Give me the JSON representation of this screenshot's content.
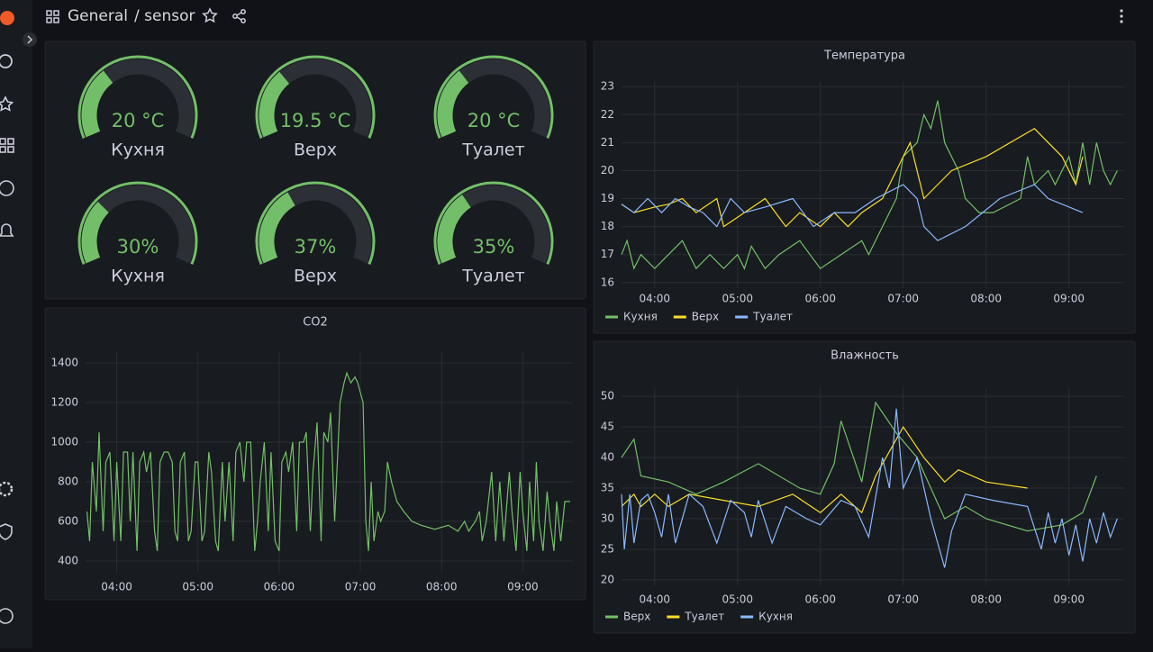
{
  "header": {
    "folder": "General",
    "dashboard": "/ sensor"
  },
  "gauges": [
    {
      "value": 20,
      "value_label": "20 °C",
      "label": "Кухня",
      "min": 0,
      "max": 60
    },
    {
      "value": 19.5,
      "value_label": "19.5 °C",
      "label": "Верх",
      "min": 0,
      "max": 60
    },
    {
      "value": 20,
      "value_label": "20 °C",
      "label": "Туалет",
      "min": 0,
      "max": 60
    },
    {
      "value": 30,
      "value_label": "30%",
      "label": "Кухня",
      "min": 0,
      "max": 100
    },
    {
      "value": 37,
      "value_label": "37%",
      "label": "Верх",
      "min": 0,
      "max": 100
    },
    {
      "value": 35,
      "value_label": "35%",
      "label": "Туалет",
      "min": 0,
      "max": 100
    }
  ],
  "chart_data": [
    {
      "type": "line",
      "title": "CO2",
      "xlim": [
        "03:37",
        "09:37"
      ],
      "xticks": [
        "04:00",
        "05:00",
        "06:00",
        "07:00",
        "08:00",
        "09:00"
      ],
      "ylim": [
        340,
        1460
      ],
      "yticks": [
        400,
        600,
        800,
        1000,
        1200,
        1400
      ],
      "grid": true,
      "series": [
        {
          "color": "#73bf69",
          "x": [
            "03:38",
            "03:40",
            "03:42",
            "03:45",
            "03:47",
            "03:50",
            "03:52",
            "03:55",
            "03:58",
            "04:00",
            "04:03",
            "04:05",
            "04:08",
            "04:10",
            "04:12",
            "04:15",
            "04:17",
            "04:20",
            "04:22",
            "04:25",
            "04:28",
            "04:30",
            "04:32",
            "04:35",
            "04:38",
            "04:41",
            "04:43",
            "04:45",
            "04:47",
            "04:50",
            "04:53",
            "04:55",
            "04:58",
            "05:00",
            "05:03",
            "05:05",
            "05:08",
            "05:10",
            "05:13",
            "05:15",
            "05:18",
            "05:20",
            "05:23",
            "05:26",
            "05:28",
            "05:31",
            "05:34",
            "05:36",
            "05:39",
            "05:42",
            "05:44",
            "05:46",
            "05:49",
            "05:52",
            "05:54",
            "05:57",
            "06:00",
            "06:02",
            "06:05",
            "06:07",
            "06:10",
            "06:13",
            "06:15",
            "06:18",
            "06:20",
            "06:23",
            "06:25",
            "06:28",
            "06:31",
            "06:33",
            "06:36",
            "06:38",
            "06:41",
            "06:43",
            "06:45",
            "06:48",
            "06:50",
            "06:53",
            "06:56",
            "06:58",
            "07:00",
            "07:02",
            "07:04",
            "07:06",
            "07:08",
            "07:10",
            "07:13",
            "07:15",
            "07:18",
            "07:20",
            "07:23",
            "07:27",
            "07:32",
            "07:38",
            "07:45",
            "07:55",
            "08:05",
            "08:12",
            "08:17",
            "08:20",
            "08:25",
            "08:28",
            "08:30",
            "08:33",
            "08:37",
            "08:40",
            "08:43",
            "08:46",
            "08:50",
            "08:52",
            "08:55",
            "08:58",
            "09:00",
            "09:03",
            "09:05",
            "09:08",
            "09:10",
            "09:12",
            "09:15",
            "09:18",
            "09:20",
            "09:23",
            "09:25",
            "09:28",
            "09:31",
            "09:35"
          ],
          "values": [
            650,
            500,
            900,
            650,
            1050,
            550,
            900,
            950,
            500,
            900,
            500,
            950,
            950,
            600,
            950,
            450,
            900,
            950,
            850,
            950,
            550,
            450,
            900,
            950,
            950,
            900,
            550,
            500,
            900,
            950,
            500,
            550,
            900,
            900,
            500,
            550,
            950,
            850,
            500,
            450,
            900,
            600,
            900,
            500,
            950,
            1000,
            800,
            1000,
            1000,
            450,
            600,
            800,
            1000,
            550,
            950,
            500,
            450,
            900,
            950,
            850,
            1000,
            550,
            1000,
            1000,
            1050,
            550,
            850,
            1100,
            500,
            1050,
            1000,
            1150,
            600,
            900,
            1200,
            1300,
            1350,
            1300,
            1330,
            1300,
            1250,
            1200,
            600,
            450,
            800,
            500,
            650,
            600,
            650,
            900,
            800,
            700,
            650,
            600,
            580,
            560,
            580,
            550,
            600,
            550,
            600,
            650,
            500,
            600,
            850,
            500,
            800,
            500,
            850,
            650,
            450,
            850,
            650,
            450,
            800,
            500,
            900,
            600,
            450,
            750,
            600,
            450,
            700,
            500,
            700,
            700
          ]
        }
      ]
    },
    {
      "type": "line",
      "title": "Температура",
      "xlim": [
        "03:36",
        "09:40"
      ],
      "xticks": [
        "04:00",
        "05:00",
        "06:00",
        "07:00",
        "08:00",
        "09:00"
      ],
      "ylim": [
        15.8,
        23.2
      ],
      "yticks": [
        16,
        17,
        18,
        19,
        20,
        21,
        22,
        23
      ],
      "grid": true,
      "legend": "bottom",
      "series": [
        {
          "name": "Кухня",
          "color": "#73bf69",
          "x": [
            "03:36",
            "03:40",
            "03:45",
            "03:50",
            "04:00",
            "04:10",
            "04:20",
            "04:30",
            "04:40",
            "04:50",
            "05:00",
            "05:05",
            "05:10",
            "05:20",
            "05:30",
            "05:45",
            "06:00",
            "06:15",
            "06:30",
            "06:35",
            "06:45",
            "06:55",
            "07:00",
            "07:10",
            "07:15",
            "07:20",
            "07:25",
            "07:30",
            "07:40",
            "07:45",
            "07:55",
            "08:05",
            "08:25",
            "08:30",
            "08:35",
            "08:45",
            "08:50",
            "09:00",
            "09:05",
            "09:10",
            "09:15",
            "09:20",
            "09:25",
            "09:30",
            "09:35"
          ],
          "values": [
            17,
            17.5,
            16.5,
            17,
            16.5,
            17,
            17.5,
            16.5,
            17,
            16.5,
            17,
            16.5,
            17.3,
            16.5,
            17,
            17.5,
            16.5,
            17,
            17.5,
            17,
            18,
            19,
            20.5,
            21,
            22,
            21.5,
            22.5,
            21,
            20,
            19,
            18.5,
            18.5,
            19,
            20.5,
            19.5,
            20,
            19.5,
            20.5,
            19.5,
            21,
            19.5,
            21,
            20,
            19.5,
            20
          ]
        },
        {
          "name": "Верх",
          "color": "#fade2a",
          "x": [
            "03:36",
            "03:45",
            "04:00",
            "04:10",
            "04:20",
            "04:30",
            "04:45",
            "04:50",
            "05:05",
            "05:20",
            "05:35",
            "05:45",
            "06:00",
            "06:10",
            "06:20",
            "06:30",
            "06:45",
            "06:55",
            "07:00",
            "07:05",
            "07:15",
            "07:25",
            "07:35",
            "08:00",
            "08:35",
            "08:55",
            "09:05",
            "09:10"
          ],
          "values": [
            18.8,
            18.5,
            18.7,
            18.8,
            19,
            18.5,
            19,
            18,
            18.5,
            19,
            18,
            18.5,
            18,
            18.5,
            18,
            18.5,
            19,
            20,
            20.5,
            21,
            19,
            19.5,
            20,
            20.5,
            21.5,
            20.5,
            19.5,
            20.5
          ]
        },
        {
          "name": "Туалет",
          "color": "#8ab8ff",
          "x": [
            "03:36",
            "03:45",
            "03:55",
            "04:05",
            "04:15",
            "04:25",
            "04:35",
            "04:45",
            "04:55",
            "05:05",
            "05:20",
            "05:40",
            "05:55",
            "06:10",
            "06:25",
            "06:40",
            "07:00",
            "07:10",
            "07:15",
            "07:25",
            "07:45",
            "08:10",
            "08:35",
            "08:45",
            "09:10"
          ],
          "values": [
            18.8,
            18.5,
            19,
            18.5,
            19,
            18.7,
            18.5,
            18,
            19,
            18.5,
            18.7,
            19,
            18,
            18.5,
            18.5,
            19,
            19.5,
            19,
            18,
            17.5,
            18,
            19,
            19.5,
            19,
            18.5
          ]
        }
      ]
    },
    {
      "type": "line",
      "title": "Влажность",
      "xlim": [
        "03:36",
        "09:40"
      ],
      "xticks": [
        "04:00",
        "05:00",
        "06:00",
        "07:00",
        "08:00",
        "09:00"
      ],
      "ylim": [
        19.1,
        51.5
      ],
      "yticks": [
        20,
        25,
        30,
        35,
        40,
        45,
        50
      ],
      "grid": true,
      "legend": "bottom",
      "series": [
        {
          "name": "Верх",
          "color": "#73bf69",
          "x": [
            "03:36",
            "03:45",
            "03:50",
            "04:10",
            "04:30",
            "04:50",
            "05:15",
            "05:45",
            "06:00",
            "06:10",
            "06:15",
            "06:30",
            "06:40",
            "06:55",
            "07:10",
            "07:20",
            "07:30",
            "07:45",
            "08:00",
            "08:30",
            "08:55",
            "09:10",
            "09:20"
          ],
          "values": [
            40,
            43,
            37,
            36,
            34,
            36,
            39,
            35,
            34,
            39,
            46,
            36,
            49,
            44,
            40,
            35,
            30,
            32,
            30,
            28,
            29,
            31,
            37
          ]
        },
        {
          "name": "Туалет",
          "color": "#fade2a",
          "x": [
            "03:36",
            "03:45",
            "03:50",
            "04:00",
            "04:10",
            "04:25",
            "04:50",
            "05:15",
            "05:40",
            "06:00",
            "06:15",
            "06:30",
            "06:40",
            "06:50",
            "07:00",
            "07:15",
            "07:30",
            "07:40",
            "08:00",
            "08:30"
          ],
          "values": [
            32,
            34,
            32,
            34,
            32,
            34,
            33,
            32,
            34,
            31,
            34,
            31,
            37,
            41,
            45,
            40,
            36,
            38,
            36,
            35
          ]
        },
        {
          "name": "Кухня",
          "color": "#8ab8ff",
          "x": [
            "03:36",
            "03:38",
            "03:42",
            "03:45",
            "03:50",
            "03:55",
            "04:00",
            "04:05",
            "04:10",
            "04:15",
            "04:25",
            "04:35",
            "04:45",
            "04:55",
            "05:05",
            "05:10",
            "05:15",
            "05:25",
            "05:35",
            "05:50",
            "06:00",
            "06:15",
            "06:25",
            "06:35",
            "06:45",
            "06:50",
            "06:55",
            "07:00",
            "07:10",
            "07:20",
            "07:30",
            "07:35",
            "07:45",
            "08:05",
            "08:30",
            "08:40",
            "08:45",
            "08:50",
            "08:55",
            "09:00",
            "09:05",
            "09:10",
            "09:15",
            "09:20",
            "09:25",
            "09:30",
            "09:35"
          ],
          "values": [
            34,
            25,
            34,
            26,
            33,
            34,
            31,
            27,
            34,
            26,
            34,
            32,
            26,
            33,
            31,
            27,
            33,
            26,
            32,
            30,
            29,
            33,
            32,
            27,
            40,
            35,
            48,
            35,
            40,
            30,
            22,
            28,
            34,
            33,
            32,
            25,
            31,
            26,
            30,
            24,
            29,
            23,
            30,
            26,
            31,
            27,
            30
          ]
        }
      ]
    }
  ]
}
